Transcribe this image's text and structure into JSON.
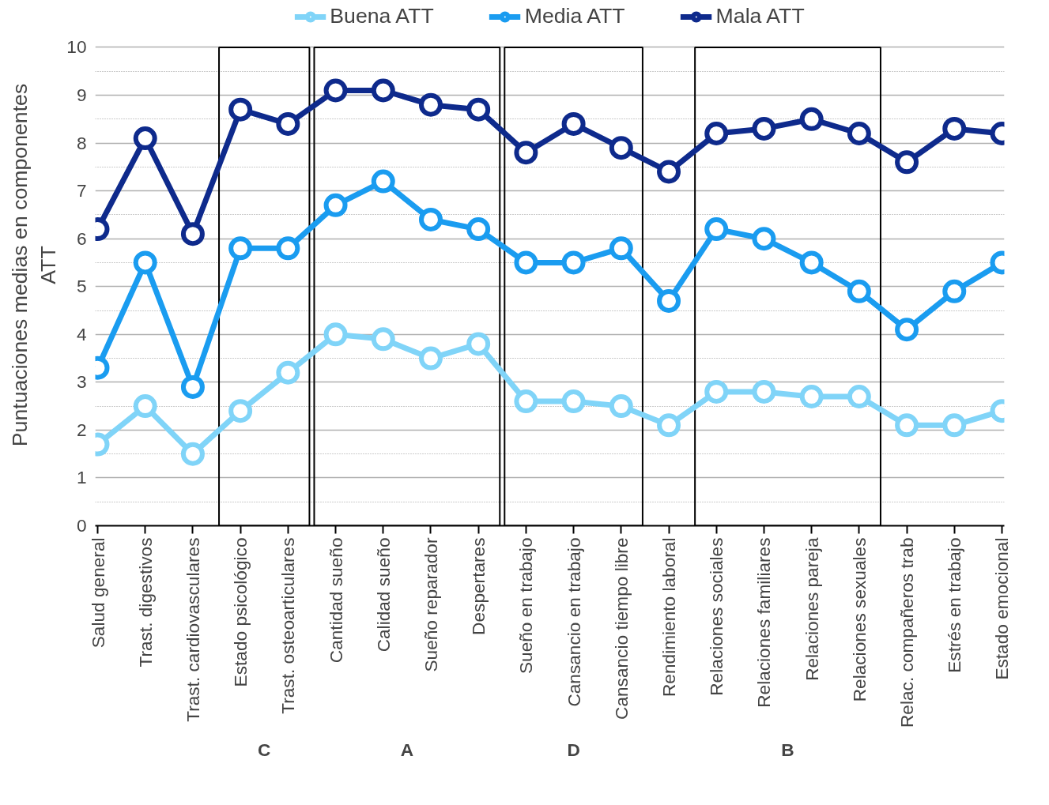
{
  "chart_data": {
    "type": "line",
    "ylabel": "Puntuaciones medias en componentes ATT",
    "categories": [
      "Salud general",
      "Trast. digestivos",
      "Trast. cardiovasculares",
      "Estado psicológico",
      "Trast. osteoarticulares",
      "Cantidad sueño",
      "Calidad sueño",
      "Sueño reparador",
      "Despertares",
      "Sueño en trabajo",
      "Cansancio en trabajo",
      "Cansancio tiempo libre",
      "Rendimiento laboral",
      "Relaciones sociales",
      "Relaciones familiares",
      "Relaciones pareja",
      "Relaciones sexuales",
      "Relac. compañeros trab",
      "Estrés en trabajo",
      "Estado emocional"
    ],
    "series": [
      {
        "name": "Buena ATT",
        "color": "#80d4f8",
        "values": [
          1.7,
          2.5,
          1.5,
          2.4,
          3.2,
          4.0,
          3.9,
          3.5,
          3.8,
          2.6,
          2.6,
          2.5,
          2.1,
          2.8,
          2.8,
          2.7,
          2.7,
          2.1,
          2.1,
          2.4
        ]
      },
      {
        "name": "Media ATT",
        "color": "#1a9cf0",
        "values": [
          3.3,
          5.5,
          2.9,
          5.8,
          5.8,
          6.7,
          7.2,
          6.4,
          6.2,
          5.5,
          5.5,
          5.8,
          4.7,
          6.2,
          6.0,
          5.5,
          4.9,
          4.1,
          4.9,
          5.5
        ]
      },
      {
        "name": "Mala ATT",
        "color": "#0e2a8c",
        "values": [
          6.2,
          8.1,
          6.1,
          8.7,
          8.4,
          9.1,
          9.1,
          8.8,
          8.7,
          7.8,
          8.4,
          7.9,
          7.4,
          8.2,
          8.3,
          8.5,
          8.2,
          7.6,
          8.3,
          8.2
        ]
      }
    ],
    "ylim": [
      0,
      10
    ],
    "yticks": [
      0,
      1,
      2,
      3,
      4,
      5,
      6,
      7,
      8,
      9,
      10
    ],
    "grid": "y",
    "legend": "top",
    "marker": "circle",
    "line_style": "solid",
    "annotations": [
      "C",
      "A",
      "D",
      "B"
    ]
  }
}
